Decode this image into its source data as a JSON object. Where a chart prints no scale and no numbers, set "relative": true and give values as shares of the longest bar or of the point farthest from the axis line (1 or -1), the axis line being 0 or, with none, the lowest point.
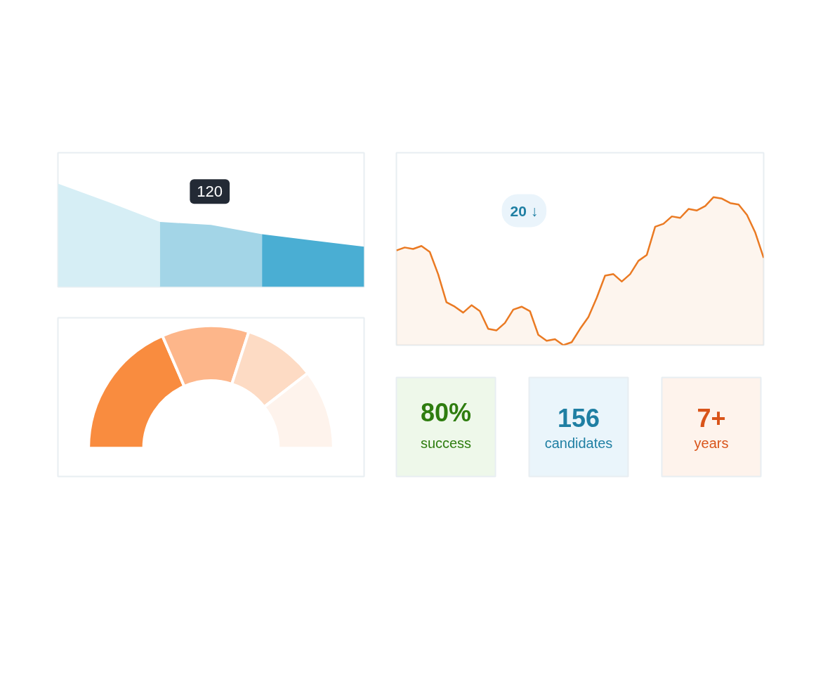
{
  "chart_data": [
    {
      "type": "area",
      "relative": true,
      "categories": [
        null,
        null,
        null,
        null,
        null,
        null,
        null
      ],
      "series": [
        {
          "color": "#d6eef5",
          "values": [
            1.0,
            0.82,
            0.63,
            null,
            null,
            null,
            null
          ]
        },
        {
          "color": "#a3d5e7",
          "values": [
            null,
            null,
            0.63,
            0.6,
            0.51,
            null,
            null
          ]
        },
        {
          "color": "#4aaed3",
          "values": [
            null,
            null,
            null,
            null,
            0.51,
            0.45,
            0.39
          ]
        }
      ],
      "annotations": [
        "120"
      ]
    },
    {
      "type": "donut",
      "categories": [
        null,
        null,
        null,
        null
      ],
      "values": [
        37,
        23,
        19,
        21
      ],
      "colors": [
        "#f98c3f",
        "#fdb68a",
        "#fddbc4",
        "#fef3ec"
      ]
    },
    {
      "type": "area",
      "relative": true,
      "categories": [
        null,
        null,
        null,
        null,
        null,
        null,
        null,
        null,
        null,
        null,
        null,
        null,
        null,
        null,
        null,
        null,
        null,
        null,
        null,
        null,
        null,
        null,
        null,
        null,
        null,
        null,
        null,
        null,
        null,
        null,
        null,
        null,
        null,
        null,
        null,
        null,
        null,
        null,
        null,
        null,
        null,
        null,
        null,
        null,
        null
      ],
      "series": [
        {
          "color": "#ea7a23",
          "values": [
            0.64,
            0.66,
            0.65,
            0.67,
            0.63,
            0.48,
            0.29,
            0.26,
            0.22,
            0.27,
            0.23,
            0.11,
            0.1,
            0.15,
            0.24,
            0.26,
            0.23,
            0.07,
            0.03,
            0.04,
            0.0,
            0.02,
            0.11,
            0.19,
            0.32,
            0.47,
            0.48,
            0.43,
            0.48,
            0.57,
            0.61,
            0.8,
            0.82,
            0.87,
            0.86,
            0.92,
            0.91,
            0.94,
            1.0,
            0.99,
            0.96,
            0.95,
            0.88,
            0.76,
            0.59
          ]
        }
      ],
      "annotations": [
        "20 ↓"
      ]
    },
    {
      "type": "other",
      "annotations": [
        "80%",
        "success",
        "156",
        "candidates",
        "7+",
        "years"
      ],
      "colors": [
        "#2e7d0f",
        "#1f7fa3",
        "#d9541a"
      ]
    }
  ]
}
